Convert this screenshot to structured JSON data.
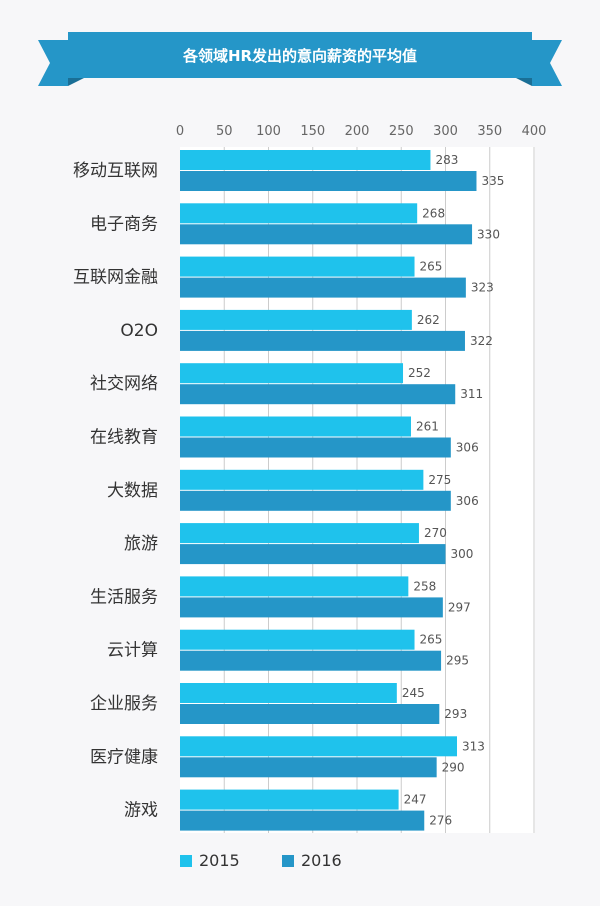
{
  "chart_data": {
    "type": "bar",
    "orientation": "horizontal",
    "title": "各领域HR发出的意向薪资的平均值",
    "categories": [
      "移动互联网",
      "电子商务",
      "互联网金融",
      "O2O",
      "社交网络",
      "在线教育",
      "大数据",
      "旅游",
      "生活服务",
      "云计算",
      "企业服务",
      "医疗健康",
      "游戏"
    ],
    "series": [
      {
        "name": "2015",
        "color": "#1fc2ec",
        "values": [
          283,
          268,
          265,
          262,
          252,
          261,
          275,
          270,
          258,
          265,
          245,
          313,
          247
        ]
      },
      {
        "name": "2016",
        "color": "#2596c8",
        "values": [
          335,
          330,
          323,
          322,
          311,
          306,
          306,
          300,
          297,
          295,
          293,
          290,
          276
        ]
      }
    ],
    "xlim": [
      0,
      400
    ],
    "xticks": [
      0,
      50,
      100,
      150,
      200,
      250,
      300,
      350,
      400
    ],
    "xtick_labels": [
      "0",
      "50",
      "100",
      "150",
      "200",
      "250",
      "300",
      "350",
      "400"
    ],
    "grid": true,
    "legend_position": "bottom-left",
    "colors": {
      "banner": "#2596c8",
      "banner_fold": "#1a6f96",
      "plot_bg": "#ffffff",
      "grid": "#cccccc"
    }
  }
}
